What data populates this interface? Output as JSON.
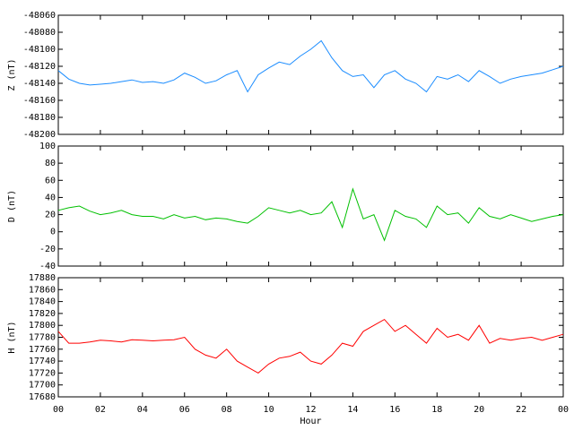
{
  "chart_data": [
    {
      "type": "line",
      "ylabel": "Z (nT)",
      "color": "#1a8cff",
      "xlim": [
        0,
        24
      ],
      "xticks": [
        0,
        2,
        4,
        6,
        8,
        10,
        12,
        14,
        16,
        18,
        20,
        22,
        24
      ],
      "ylim": [
        -48200,
        -48060
      ],
      "yticks": [
        -48200,
        -48180,
        -48160,
        -48140,
        -48120,
        -48100,
        -48080,
        -48060
      ],
      "x": [
        0,
        0.5,
        1,
        1.5,
        2,
        2.5,
        3,
        3.5,
        4,
        4.5,
        5,
        5.5,
        6,
        6.5,
        7,
        7.5,
        8,
        8.5,
        9,
        9.5,
        10,
        10.5,
        11,
        11.5,
        12,
        12.5,
        13,
        13.5,
        14,
        14.5,
        15,
        15.5,
        16,
        16.5,
        17,
        17.5,
        18,
        18.5,
        19,
        19.5,
        20,
        20.5,
        21,
        21.5,
        22,
        22.5,
        23,
        23.5,
        24
      ],
      "values": [
        -48125,
        -48135,
        -48140,
        -48142,
        -48141,
        -48140,
        -48138,
        -48136,
        -48139,
        -48138,
        -48140,
        -48136,
        -48128,
        -48133,
        -48140,
        -48137,
        -48130,
        -48125,
        -48150,
        -48130,
        -48122,
        -48115,
        -48118,
        -48108,
        -48100,
        -48090,
        -48110,
        -48125,
        -48132,
        -48130,
        -48145,
        -48130,
        -48125,
        -48135,
        -48140,
        -48150,
        -48132,
        -48135,
        -48130,
        -48138,
        -48125,
        -48132,
        -48140,
        -48135,
        -48132,
        -48130,
        -48128,
        -48124,
        -48120
      ]
    },
    {
      "type": "line",
      "ylabel": "D (nT)",
      "color": "#00c000",
      "xlim": [
        0,
        24
      ],
      "xticks": [
        0,
        2,
        4,
        6,
        8,
        10,
        12,
        14,
        16,
        18,
        20,
        22,
        24
      ],
      "ylim": [
        -40,
        100
      ],
      "yticks": [
        -40,
        -20,
        0,
        20,
        40,
        60,
        80,
        100
      ],
      "x": [
        0,
        0.5,
        1,
        1.5,
        2,
        2.5,
        3,
        3.5,
        4,
        4.5,
        5,
        5.5,
        6,
        6.5,
        7,
        7.5,
        8,
        8.5,
        9,
        9.5,
        10,
        10.5,
        11,
        11.5,
        12,
        12.5,
        13,
        13.5,
        14,
        14.5,
        15,
        15.5,
        16,
        16.5,
        17,
        17.5,
        18,
        18.5,
        19,
        19.5,
        20,
        20.5,
        21,
        21.5,
        22,
        22.5,
        23,
        23.5,
        24
      ],
      "values": [
        25,
        28,
        30,
        24,
        20,
        22,
        25,
        20,
        18,
        18,
        15,
        20,
        16,
        18,
        14,
        16,
        15,
        12,
        10,
        18,
        28,
        25,
        22,
        25,
        20,
        22,
        35,
        5,
        50,
        15,
        20,
        -10,
        25,
        18,
        15,
        5,
        30,
        20,
        22,
        10,
        28,
        18,
        15,
        20,
        16,
        12,
        15,
        18,
        20
      ]
    },
    {
      "type": "line",
      "ylabel": "H (nT)",
      "xlabel": "Hour",
      "color": "#ff0000",
      "xlim": [
        0,
        24
      ],
      "xticks": [
        {
          "value": 0,
          "label": "00"
        },
        {
          "value": 2,
          "label": "02"
        },
        {
          "value": 4,
          "label": "04"
        },
        {
          "value": 6,
          "label": "06"
        },
        {
          "value": 8,
          "label": "08"
        },
        10,
        12,
        14,
        16,
        18,
        20,
        22,
        {
          "value": 24,
          "label": "00"
        }
      ],
      "ylim": [
        17680,
        17880
      ],
      "yticks": [
        17680,
        17700,
        17720,
        17740,
        17760,
        17780,
        17800,
        17820,
        17840,
        17860,
        17880
      ],
      "x": [
        0,
        0.5,
        1,
        1.5,
        2,
        2.5,
        3,
        3.5,
        4,
        4.5,
        5,
        5.5,
        6,
        6.5,
        7,
        7.5,
        8,
        8.5,
        9,
        9.5,
        10,
        10.5,
        11,
        11.5,
        12,
        12.5,
        13,
        13.5,
        14,
        14.5,
        15,
        15.5,
        16,
        16.5,
        17,
        17.5,
        18,
        18.5,
        19,
        19.5,
        20,
        20.5,
        21,
        21.5,
        22,
        22.5,
        23,
        23.5,
        24
      ],
      "values": [
        17790,
        17770,
        17770,
        17772,
        17775,
        17774,
        17772,
        17776,
        17775,
        17774,
        17775,
        17776,
        17780,
        17760,
        17750,
        17745,
        17760,
        17740,
        17730,
        17720,
        17735,
        17745,
        17748,
        17755,
        17740,
        17735,
        17750,
        17770,
        17765,
        17790,
        17800,
        17810,
        17790,
        17800,
        17785,
        17770,
        17795,
        17780,
        17785,
        17775,
        17800,
        17770,
        17778,
        17775,
        17778,
        17780,
        17775,
        17780,
        17785
      ]
    }
  ]
}
